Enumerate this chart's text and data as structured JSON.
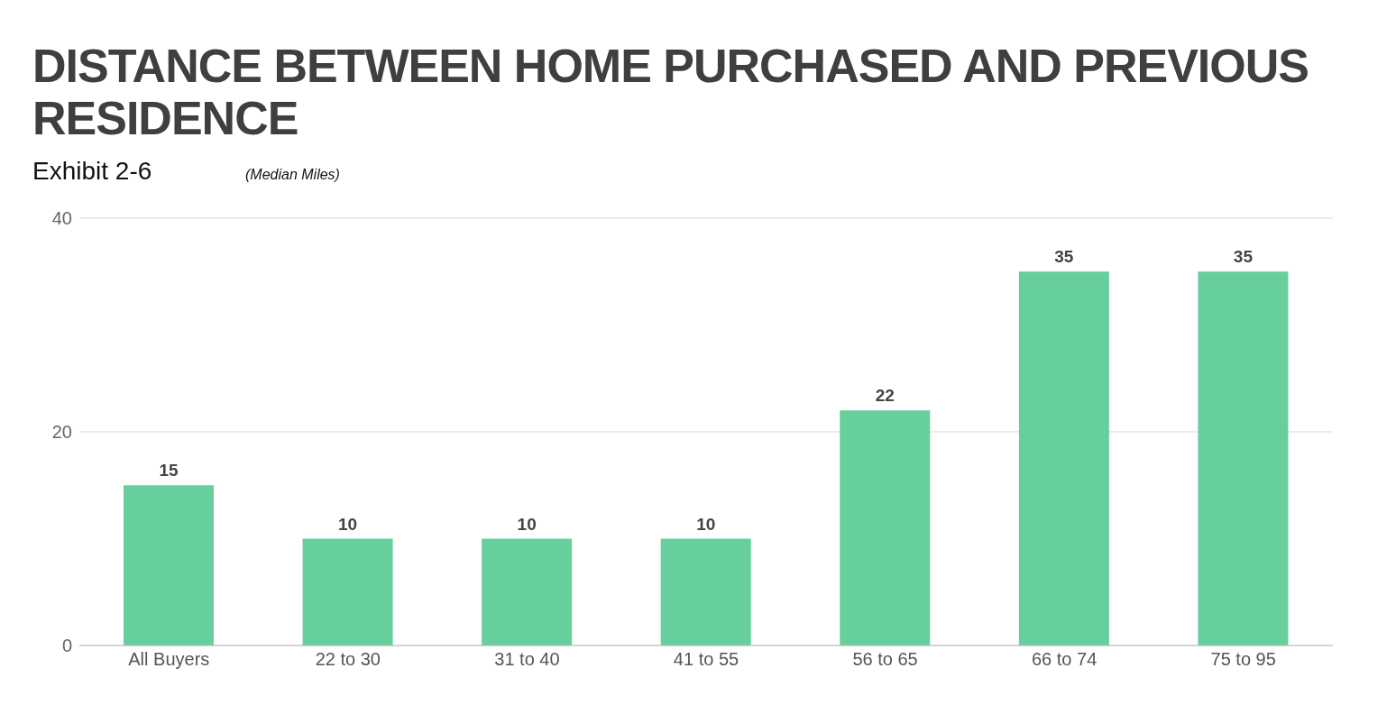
{
  "chart_data": {
    "type": "bar",
    "title": "DISTANCE BETWEEN HOME PURCHASED AND PREVIOUS RESIDENCE",
    "subtitle": "Exhibit 2-6",
    "ylabel": "(Median Miles)",
    "categories": [
      "All Buyers",
      "22 to 30",
      "31 to 40",
      "41 to 55",
      "56 to 65",
      "66 to 74",
      "75 to 95"
    ],
    "values": [
      15,
      10,
      10,
      10,
      22,
      35,
      35
    ],
    "color": "#66cf9c",
    "ylim": [
      0,
      40
    ],
    "yticks": [
      0,
      20,
      40
    ],
    "grid": "y",
    "data_labels": true,
    "legend": false
  }
}
